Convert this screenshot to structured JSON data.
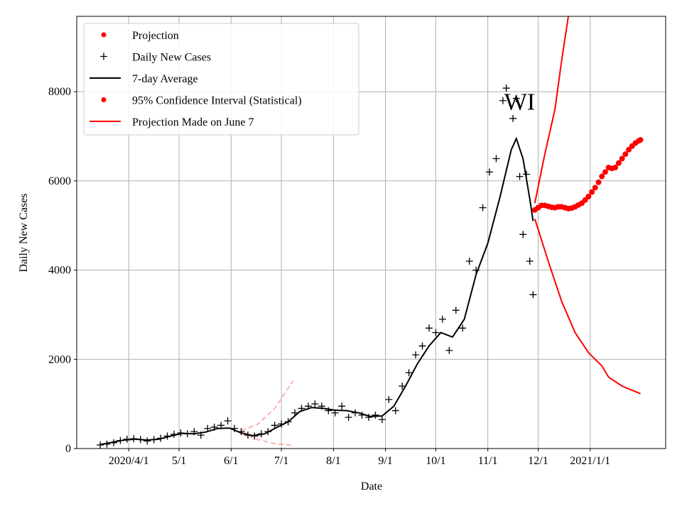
{
  "chart_data": {
    "type": "line",
    "xlabel": "Date",
    "ylabel": "Daily New Cases",
    "annotation": "WI",
    "xlim": [
      "2020-03-01",
      "2021-02-15"
    ],
    "ylim": [
      0,
      9690
    ],
    "yticks": [
      0,
      2000,
      4000,
      6000,
      8000
    ],
    "xticks": [
      {
        "value": "2020-04-01",
        "label": "2020/4/1"
      },
      {
        "value": "2020-05-01",
        "label": "5/1"
      },
      {
        "value": "2020-06-01",
        "label": "6/1"
      },
      {
        "value": "2020-07-01",
        "label": "7/1"
      },
      {
        "value": "2020-08-01",
        "label": "8/1"
      },
      {
        "value": "2020-09-01",
        "label": "9/1"
      },
      {
        "value": "2020-10-01",
        "label": "10/1"
      },
      {
        "value": "2020-11-01",
        "label": "11/1"
      },
      {
        "value": "2020-12-01",
        "label": "12/1"
      },
      {
        "value": "2021-01-01",
        "label": "2021/1/1"
      }
    ],
    "grid": true,
    "legend": "upper left",
    "series": [
      {
        "name": "Projection",
        "color": "#ff0000",
        "marker": "dot",
        "x": [
          "2020-11-29",
          "2020-12-01",
          "2020-12-03",
          "2020-12-05",
          "2020-12-07",
          "2020-12-09",
          "2020-12-11",
          "2020-12-13",
          "2020-12-15",
          "2020-12-17",
          "2020-12-19",
          "2020-12-21",
          "2020-12-23",
          "2020-12-25",
          "2020-12-27",
          "2020-12-29",
          "2020-12-31",
          "2021-01-02",
          "2021-01-04",
          "2021-01-06",
          "2021-01-08",
          "2021-01-10",
          "2021-01-12",
          "2021-01-14",
          "2021-01-16",
          "2021-01-18",
          "2021-01-20",
          "2021-01-22",
          "2021-01-24",
          "2021-01-26",
          "2021-01-28",
          "2021-01-30",
          "2021-01-31"
        ],
        "values": [
          5350,
          5400,
          5450,
          5450,
          5430,
          5410,
          5400,
          5420,
          5420,
          5400,
          5380,
          5390,
          5420,
          5460,
          5500,
          5570,
          5650,
          5750,
          5850,
          5970,
          6100,
          6200,
          6300,
          6280,
          6300,
          6400,
          6500,
          6600,
          6700,
          6780,
          6850,
          6900,
          6920
        ]
      },
      {
        "name": "Daily New Cases",
        "color": "#000000",
        "marker": "plus",
        "x": [
          "2020-03-15",
          "2020-03-19",
          "2020-03-23",
          "2020-03-27",
          "2020-03-31",
          "2020-04-04",
          "2020-04-08",
          "2020-04-12",
          "2020-04-16",
          "2020-04-20",
          "2020-04-24",
          "2020-04-28",
          "2020-05-02",
          "2020-05-06",
          "2020-05-10",
          "2020-05-14",
          "2020-05-18",
          "2020-05-22",
          "2020-05-26",
          "2020-05-30",
          "2020-06-03",
          "2020-06-07",
          "2020-06-11",
          "2020-06-15",
          "2020-06-19",
          "2020-06-23",
          "2020-06-27",
          "2020-07-01",
          "2020-07-05",
          "2020-07-09",
          "2020-07-13",
          "2020-07-17",
          "2020-07-21",
          "2020-07-25",
          "2020-07-29",
          "2020-08-02",
          "2020-08-06",
          "2020-08-10",
          "2020-08-14",
          "2020-08-18",
          "2020-08-22",
          "2020-08-26",
          "2020-08-30",
          "2020-09-03",
          "2020-09-07",
          "2020-09-11",
          "2020-09-15",
          "2020-09-19",
          "2020-09-23",
          "2020-09-27",
          "2020-10-01",
          "2020-10-05",
          "2020-10-09",
          "2020-10-13",
          "2020-10-17",
          "2020-10-21",
          "2020-10-25",
          "2020-10-29",
          "2020-11-02",
          "2020-11-06",
          "2020-11-10",
          "2020-11-12",
          "2020-11-16",
          "2020-11-18",
          "2020-11-20",
          "2020-11-22",
          "2020-11-24",
          "2020-11-26",
          "2020-11-28"
        ],
        "values": [
          80,
          100,
          130,
          180,
          210,
          220,
          200,
          170,
          200,
          230,
          280,
          320,
          350,
          330,
          380,
          300,
          450,
          480,
          520,
          620,
          450,
          380,
          300,
          280,
          330,
          380,
          520,
          550,
          600,
          800,
          900,
          950,
          1000,
          950,
          850,
          800,
          950,
          700,
          800,
          750,
          700,
          750,
          650,
          1100,
          850,
          1400,
          1700,
          2100,
          2300,
          2700,
          2600,
          2900,
          2200,
          3100,
          2700,
          4200,
          4000,
          5400,
          6200,
          6500,
          7800,
          8080,
          7400,
          7850,
          6100,
          4800,
          6150,
          4200,
          3450
        ]
      },
      {
        "name": "7-day Average",
        "color": "#000000",
        "marker": "line",
        "x": [
          "2020-03-15",
          "2020-03-22",
          "2020-03-29",
          "2020-04-05",
          "2020-04-12",
          "2020-04-19",
          "2020-04-26",
          "2020-05-03",
          "2020-05-10",
          "2020-05-17",
          "2020-05-24",
          "2020-05-31",
          "2020-06-07",
          "2020-06-14",
          "2020-06-21",
          "2020-06-28",
          "2020-07-05",
          "2020-07-12",
          "2020-07-19",
          "2020-07-26",
          "2020-08-02",
          "2020-08-09",
          "2020-08-16",
          "2020-08-23",
          "2020-08-30",
          "2020-09-06",
          "2020-09-13",
          "2020-09-20",
          "2020-09-27",
          "2020-10-04",
          "2020-10-11",
          "2020-10-18",
          "2020-10-25",
          "2020-11-01",
          "2020-11-08",
          "2020-11-15",
          "2020-11-18",
          "2020-11-22",
          "2020-11-26",
          "2020-11-28"
        ],
        "values": [
          90,
          140,
          190,
          210,
          190,
          210,
          280,
          340,
          330,
          370,
          450,
          460,
          350,
          290,
          330,
          470,
          600,
          830,
          920,
          900,
          860,
          850,
          800,
          720,
          730,
          950,
          1400,
          1900,
          2300,
          2600,
          2500,
          2900,
          3900,
          4600,
          5600,
          6700,
          6950,
          6500,
          5600,
          5100
        ]
      },
      {
        "name": "95% Confidence Interval (Statistical)",
        "color": "#ff0000",
        "marker": "dot",
        "x_upper": [
          "2020-11-29",
          "2020-12-05",
          "2020-12-11",
          "2020-12-15",
          "2020-12-19"
        ],
        "upper": [
          5500,
          6600,
          7600,
          8700,
          9690
        ],
        "x_lower": [
          "2020-11-29",
          "2020-12-07",
          "2020-12-15",
          "2020-12-23",
          "2020-12-31",
          "2021-01-08",
          "2021-01-12",
          "2021-01-20",
          "2021-01-31"
        ],
        "lower": [
          5150,
          4200,
          3300,
          2600,
          2150,
          1850,
          1600,
          1400,
          1230
        ]
      },
      {
        "name": "Projection Made on June 7",
        "color": "#ff0000",
        "marker": "line",
        "x_upper": [
          "2020-06-07",
          "2020-06-17",
          "2020-06-27",
          "2020-07-08"
        ],
        "upper": [
          400,
          550,
          900,
          1520
        ],
        "x_lower": [
          "2020-06-07",
          "2020-06-17",
          "2020-06-27",
          "2020-07-08"
        ],
        "lower": [
          350,
          200,
          110,
          70
        ]
      }
    ]
  }
}
